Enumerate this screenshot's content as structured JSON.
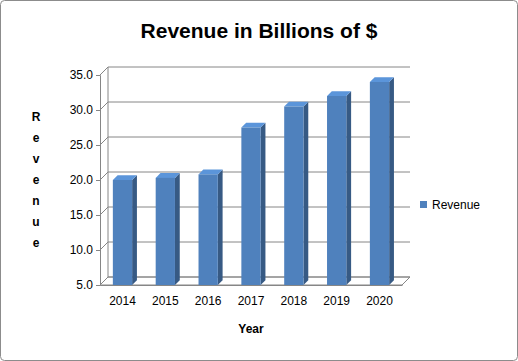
{
  "chart_data": {
    "type": "bar",
    "title": "Revenue in Billions of $",
    "x_label": "Year",
    "y_label": "Revenue",
    "categories": [
      "2014",
      "2015",
      "2016",
      "2017",
      "2018",
      "2019",
      "2020"
    ],
    "series": [
      {
        "name": "Revenue",
        "color": "#4f81bd",
        "values": [
          20.0,
          20.3,
          20.8,
          27.5,
          30.5,
          32.0,
          34.0
        ]
      }
    ],
    "ylim": [
      5,
      35
    ],
    "yticks": [
      {
        "value": 5,
        "label": "5.0"
      },
      {
        "value": 10,
        "label": "10.0"
      },
      {
        "value": 15,
        "label": "15.0"
      },
      {
        "value": 20,
        "label": "20.0"
      },
      {
        "value": 25,
        "label": "25.0"
      },
      {
        "value": 30,
        "label": "30.0"
      },
      {
        "value": 35,
        "label": "35.0"
      }
    ],
    "grid": true,
    "legend": "right"
  }
}
